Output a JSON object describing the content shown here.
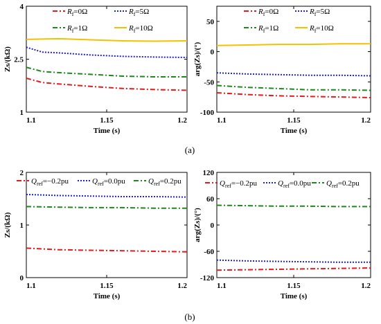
{
  "captions": {
    "a": "(a)",
    "b": "(b)"
  },
  "chart_data": [
    {
      "type": "line",
      "id": "a-left",
      "title": "",
      "xlabel": "Time (s)",
      "ylabel": "Zs/(kΩ)",
      "xlim": [
        1.1,
        1.2
      ],
      "ylim": [
        1,
        4
      ],
      "xticks": [
        "1.1",
        "1.15",
        "1.2"
      ],
      "yticks": [
        "1",
        "2.5",
        "4"
      ],
      "legend_position": "top",
      "series": [
        {
          "name": "Rf=0Ω",
          "color": "#e31a1c",
          "dash": "dashdot",
          "x": [
            1.1,
            1.11,
            1.12,
            1.14,
            1.16,
            1.18,
            1.2
          ],
          "y": [
            1.96,
            1.84,
            1.8,
            1.73,
            1.67,
            1.64,
            1.62
          ]
        },
        {
          "name": "Rf=5Ω",
          "color": "#1f1fd6",
          "dash": "dot",
          "x": [
            1.1,
            1.11,
            1.12,
            1.14,
            1.16,
            1.18,
            1.2
          ],
          "y": [
            2.84,
            2.7,
            2.68,
            2.62,
            2.58,
            2.56,
            2.55
          ]
        },
        {
          "name": "Rf=1Ω",
          "color": "#1a8a1a",
          "dash": "dashdot",
          "x": [
            1.1,
            1.11,
            1.12,
            1.14,
            1.16,
            1.18,
            1.2
          ],
          "y": [
            2.27,
            2.15,
            2.12,
            2.07,
            2.02,
            2.0,
            2.0
          ]
        },
        {
          "name": "Rf=10Ω",
          "color": "#f2c200",
          "dash": "solid",
          "x": [
            1.1,
            1.12,
            1.14,
            1.16,
            1.18,
            1.2
          ],
          "y": [
            3.06,
            3.08,
            3.05,
            3.02,
            3.01,
            3.02
          ]
        }
      ]
    },
    {
      "type": "line",
      "id": "a-right",
      "title": "",
      "xlabel": "Time (s)",
      "ylabel": "arg(Zs)/(°)",
      "xlim": [
        1.1,
        1.2
      ],
      "ylim": [
        -100,
        75
      ],
      "xticks": [
        "1.1",
        "1.15",
        "1.2"
      ],
      "yticks": [
        "-100",
        "-50",
        "0",
        "50"
      ],
      "legend_position": "top",
      "series": [
        {
          "name": "Rf=0Ω",
          "color": "#e31a1c",
          "dash": "dashdot",
          "x": [
            1.1,
            1.12,
            1.14,
            1.16,
            1.18,
            1.2
          ],
          "y": [
            -68,
            -71,
            -73,
            -74,
            -75,
            -76
          ]
        },
        {
          "name": "Rf=5Ω",
          "color": "#1f1fd6",
          "dash": "dot",
          "x": [
            1.1,
            1.12,
            1.14,
            1.16,
            1.18,
            1.2
          ],
          "y": [
            -35,
            -37,
            -38,
            -39,
            -39,
            -40
          ]
        },
        {
          "name": "Rf=1Ω",
          "color": "#1a8a1a",
          "dash": "dashdot",
          "x": [
            1.1,
            1.12,
            1.14,
            1.16,
            1.18,
            1.2
          ],
          "y": [
            -56,
            -59,
            -61,
            -63,
            -63,
            -64
          ]
        },
        {
          "name": "Rf=10Ω",
          "color": "#f2c200",
          "dash": "solid",
          "x": [
            1.1,
            1.12,
            1.14,
            1.16,
            1.18,
            1.2
          ],
          "y": [
            10,
            11,
            12,
            12,
            13,
            13
          ]
        }
      ]
    },
    {
      "type": "line",
      "id": "b-left",
      "title": "",
      "xlabel": "Time (s)",
      "ylabel": "Zs/(kΩ)",
      "xlim": [
        1.1,
        1.2
      ],
      "ylim": [
        0,
        2
      ],
      "xticks": [
        "1.1",
        "1.15",
        "1.2"
      ],
      "yticks": [
        "0",
        "1",
        "2"
      ],
      "legend_position": "top",
      "series": [
        {
          "name": "Qref=−0.2pu",
          "color": "#e31a1c",
          "dash": "dashdot",
          "x": [
            1.1,
            1.12,
            1.14,
            1.16,
            1.18,
            1.2
          ],
          "y": [
            0.56,
            0.53,
            0.52,
            0.51,
            0.5,
            0.49
          ]
        },
        {
          "name": "Qref=0.0pu",
          "color": "#1f1fd6",
          "dash": "dot",
          "x": [
            1.1,
            1.12,
            1.14,
            1.16,
            1.18,
            1.2
          ],
          "y": [
            1.58,
            1.56,
            1.55,
            1.54,
            1.54,
            1.53
          ]
        },
        {
          "name": "Qref=0.2pu",
          "color": "#1a8a1a",
          "dash": "dashdot",
          "x": [
            1.1,
            1.12,
            1.14,
            1.16,
            1.18,
            1.2
          ],
          "y": [
            1.35,
            1.34,
            1.33,
            1.33,
            1.32,
            1.32
          ]
        }
      ]
    },
    {
      "type": "line",
      "id": "b-right",
      "title": "",
      "xlabel": "Time (s)",
      "ylabel": "arg(Zs)/(°)",
      "xlim": [
        1.1,
        1.2
      ],
      "ylim": [
        -120,
        120
      ],
      "xticks": [
        "1.1",
        "1.15",
        "1.2"
      ],
      "yticks": [
        "-120",
        "-60",
        "0",
        "60",
        "120"
      ],
      "legend_position": "top",
      "series": [
        {
          "name": "Qref=−0.2pu",
          "color": "#e31a1c",
          "dash": "dashdot",
          "x": [
            1.1,
            1.12,
            1.14,
            1.16,
            1.18,
            1.2
          ],
          "y": [
            -103,
            -102,
            -101,
            -100,
            -99,
            -98
          ]
        },
        {
          "name": "Qref=0.0pu",
          "color": "#1f1fd6",
          "dash": "dot",
          "x": [
            1.1,
            1.12,
            1.14,
            1.16,
            1.18,
            1.2
          ],
          "y": [
            -80,
            -82,
            -83,
            -84,
            -85,
            -85
          ]
        },
        {
          "name": "Qref=0.2pu",
          "color": "#1a8a1a",
          "dash": "dashdot",
          "x": [
            1.1,
            1.12,
            1.14,
            1.16,
            1.18,
            1.2
          ],
          "y": [
            45,
            44,
            43,
            43,
            42,
            42
          ]
        }
      ]
    }
  ]
}
